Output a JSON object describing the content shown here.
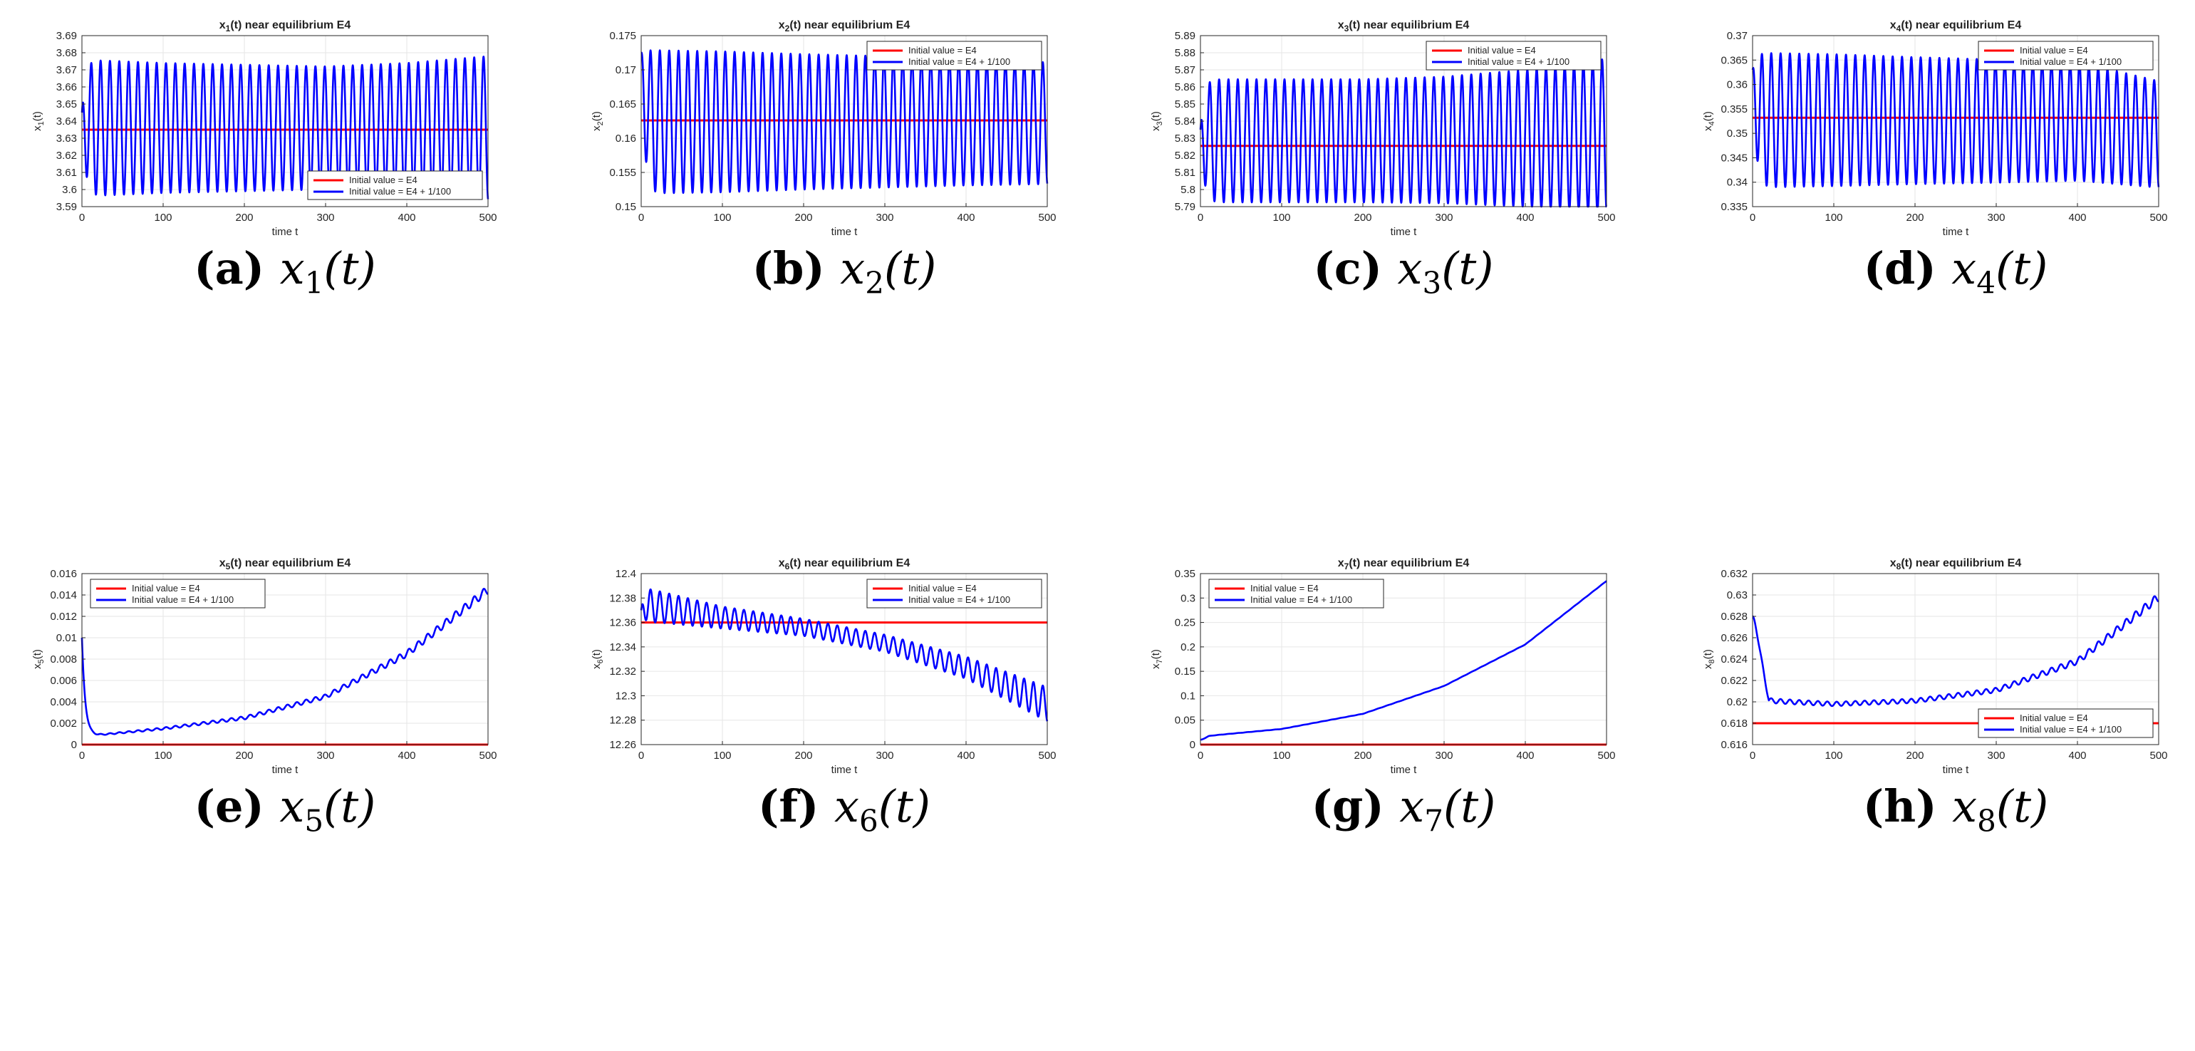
{
  "figure": {
    "legend_labels": {
      "base": "Initial value = E4",
      "perturbed": "Initial value = E4 + 1/100"
    }
  },
  "chart_data": [
    {
      "type": "line",
      "title": "x1(t) near equilibrium E4",
      "title_main": "x",
      "title_sub": "1",
      "title_rest": "(t) near equilibrium E4",
      "xlabel": "time t",
      "ylabel_main": "x",
      "ylabel_sub": "1",
      "ylabel_rest": "(t)",
      "xlim": [
        0,
        500
      ],
      "xticks": [
        0,
        100,
        200,
        300,
        400,
        500
      ],
      "xticklabels": [
        "0",
        "100",
        "200",
        "300",
        "400",
        "500"
      ],
      "ylim": [
        3.59,
        3.69
      ],
      "yticks": [
        3.59,
        3.6,
        3.61,
        3.62,
        3.63,
        3.64,
        3.65,
        3.66,
        3.67,
        3.68,
        3.69
      ],
      "yticklabels": [
        "3.59",
        "3.6",
        "3.61",
        "3.62",
        "3.63",
        "3.64",
        "3.65",
        "3.66",
        "3.67",
        "3.68",
        "3.69"
      ],
      "legend": "bottom-right",
      "series": [
        {
          "name": "Initial value = E4",
          "color": "#ff0000",
          "constant": 3.635
        },
        {
          "name": "Initial value = E4 + 1/100",
          "color": "#0000ff",
          "start": 3.645,
          "period": 11.5,
          "trend": [
            3.636,
            3.636,
            3.636,
            3.636,
            3.636,
            3.636
          ],
          "amplitude": [
            0.04,
            0.038,
            0.037,
            0.036,
            0.038,
            0.042
          ]
        }
      ],
      "caption_label": "(a)",
      "caption_var": "x",
      "caption_sub": "1",
      "caption_arg": "(t)"
    },
    {
      "type": "line",
      "title": "x2(t) near equilibrium E4",
      "title_main": "x",
      "title_sub": "2",
      "title_rest": "(t) near equilibrium E4",
      "xlabel": "time t",
      "ylabel_main": "x",
      "ylabel_sub": "2",
      "ylabel_rest": "(t)",
      "xlim": [
        0,
        500
      ],
      "xticks": [
        0,
        100,
        200,
        300,
        400,
        500
      ],
      "xticklabels": [
        "0",
        "100",
        "200",
        "300",
        "400",
        "500"
      ],
      "ylim": [
        0.15,
        0.175
      ],
      "yticks": [
        0.15,
        0.155,
        0.16,
        0.165,
        0.17,
        0.175
      ],
      "yticklabels": [
        "0.15",
        "0.155",
        "0.16",
        "0.165",
        "0.17",
        "0.175"
      ],
      "legend": "top-right",
      "series": [
        {
          "name": "Initial value = E4",
          "color": "#ff0000",
          "constant": 0.1626
        },
        {
          "name": "Initial value = E4 + 1/100",
          "color": "#0000ff",
          "start": 0.1725,
          "period": 11.5,
          "trend": [
            0.1624,
            0.1624,
            0.1624,
            0.1624,
            0.1624,
            0.1622
          ],
          "amplitude": [
            0.0105,
            0.0103,
            0.0099,
            0.0096,
            0.0093,
            0.0089
          ]
        }
      ],
      "caption_label": "(b)",
      "caption_var": "x",
      "caption_sub": "2",
      "caption_arg": "(t)"
    },
    {
      "type": "line",
      "title": "x3(t) near equilibrium E4",
      "title_main": "x",
      "title_sub": "3",
      "title_rest": "(t) near equilibrium E4",
      "xlabel": "time t",
      "ylabel_main": "x",
      "ylabel_sub": "3",
      "ylabel_rest": "(t)",
      "xlim": [
        0,
        500
      ],
      "xticks": [
        0,
        100,
        200,
        300,
        400,
        500
      ],
      "xticklabels": [
        "0",
        "100",
        "200",
        "300",
        "400",
        "500"
      ],
      "ylim": [
        5.79,
        5.89
      ],
      "yticks": [
        5.79,
        5.8,
        5.81,
        5.82,
        5.83,
        5.84,
        5.85,
        5.86,
        5.87,
        5.88,
        5.89
      ],
      "yticklabels": [
        "5.79",
        "5.8",
        "5.81",
        "5.82",
        "5.83",
        "5.84",
        "5.85",
        "5.86",
        "5.87",
        "5.88",
        "5.89"
      ],
      "legend": "top-right",
      "series": [
        {
          "name": "Initial value = E4",
          "color": "#ff0000",
          "constant": 5.8255
        },
        {
          "name": "Initial value = E4 + 1/100",
          "color": "#0000ff",
          "start": 5.835,
          "period": 11.5,
          "trend": [
            5.8285,
            5.8285,
            5.8285,
            5.829,
            5.83,
            5.8315
          ],
          "amplitude": [
            0.036,
            0.036,
            0.036,
            0.037,
            0.04,
            0.045
          ]
        }
      ],
      "caption_label": "(c)",
      "caption_var": "x",
      "caption_sub": "3",
      "caption_arg": "(t)"
    },
    {
      "type": "line",
      "title": "x4(t) near equilibrium E4",
      "title_main": "x",
      "title_sub": "4",
      "title_rest": "(t) near equilibrium E4",
      "xlabel": "time t",
      "ylabel_main": "x",
      "ylabel_sub": "4",
      "ylabel_rest": "(t)",
      "xlim": [
        0,
        500
      ],
      "xticks": [
        0,
        100,
        200,
        300,
        400,
        500
      ],
      "xticklabels": [
        "0",
        "100",
        "200",
        "300",
        "400",
        "500"
      ],
      "ylim": [
        0.335,
        0.37
      ],
      "yticks": [
        0.335,
        0.34,
        0.345,
        0.35,
        0.355,
        0.36,
        0.365,
        0.37
      ],
      "yticklabels": [
        "0.335",
        "0.34",
        "0.345",
        "0.35",
        "0.355",
        "0.36",
        "0.365",
        "0.37"
      ],
      "legend": "top-right",
      "series": [
        {
          "name": "Initial value = E4",
          "color": "#ff0000",
          "constant": 0.3532
        },
        {
          "name": "Initial value = E4 + 1/100",
          "color": "#0000ff",
          "start": 0.363,
          "period": 11.5,
          "trend": [
            0.3527,
            0.3527,
            0.3526,
            0.3525,
            0.3525,
            0.3498
          ],
          "amplitude": [
            0.0138,
            0.0135,
            0.013,
            0.0126,
            0.0122,
            0.0109
          ]
        }
      ],
      "caption_label": "(d)",
      "caption_var": "x",
      "caption_sub": "4",
      "caption_arg": "(t)"
    },
    {
      "type": "line",
      "title": "x5(t) near equilibrium E4",
      "title_main": "x",
      "title_sub": "5",
      "title_rest": "(t) near equilibrium E4",
      "xlabel": "time t",
      "ylabel_main": "x",
      "ylabel_sub": "5",
      "ylabel_rest": "(t)",
      "xlim": [
        0,
        500
      ],
      "xticks": [
        0,
        100,
        200,
        300,
        400,
        500
      ],
      "xticklabels": [
        "0",
        "100",
        "200",
        "300",
        "400",
        "500"
      ],
      "ylim": [
        0,
        0.016
      ],
      "yticks": [
        0,
        0.002,
        0.004,
        0.006,
        0.008,
        0.01,
        0.012,
        0.014,
        0.016
      ],
      "yticklabels": [
        "0",
        "0.002",
        "0.004",
        "0.006",
        "0.008",
        "0.01",
        "0.012",
        "0.014",
        "0.016"
      ],
      "legend": "top-left",
      "series": [
        {
          "name": "Initial value = E4",
          "color": "#ff0000",
          "constant": 0
        },
        {
          "name": "Initial value = E4 + 1/100",
          "color": "#0000ff",
          "start": 0.01,
          "period": 11.5,
          "trend": [
            0.0009,
            0.0009,
            0.0015,
            0.0025,
            0.0045,
            0.0085,
            0.0145
          ],
          "trend_x": [
            0,
            20,
            100,
            200,
            300,
            400,
            500
          ],
          "amplitude": [
            5e-05,
            5e-05,
            0.0001,
            0.00015,
            0.0002,
            0.0003,
            0.0004
          ]
        }
      ],
      "caption_label": "(e)",
      "caption_var": "x",
      "caption_sub": "5",
      "caption_arg": "(t)"
    },
    {
      "type": "line",
      "title": "x6(t) near equilibrium E4",
      "title_main": "x",
      "title_sub": "6",
      "title_rest": "(t) near equilibrium E4",
      "xlabel": "time t",
      "ylabel_main": "x",
      "ylabel_sub": "6",
      "ylabel_rest": "(t)",
      "xlim": [
        0,
        500
      ],
      "xticks": [
        0,
        100,
        200,
        300,
        400,
        500
      ],
      "xticklabels": [
        "0",
        "100",
        "200",
        "300",
        "400",
        "500"
      ],
      "ylim": [
        12.26,
        12.4
      ],
      "yticks": [
        12.26,
        12.28,
        12.3,
        12.32,
        12.34,
        12.36,
        12.38,
        12.4
      ],
      "yticklabels": [
        "12.26",
        "12.28",
        "12.3",
        "12.32",
        "12.34",
        "12.36",
        "12.38",
        "12.4"
      ],
      "legend": "top-right",
      "series": [
        {
          "name": "Initial value = E4",
          "color": "#ff0000",
          "constant": 12.36
        },
        {
          "name": "Initial value = E4 + 1/100",
          "color": "#0000ff",
          "start": 12.37,
          "period": 11.5,
          "trend": [
            12.375,
            12.373,
            12.364,
            12.356,
            12.343,
            12.323,
            12.293
          ],
          "trend_x": [
            0,
            20,
            100,
            200,
            300,
            400,
            500
          ],
          "amplitude": [
            0.016,
            0.013,
            0.009,
            0.007,
            0.007,
            0.009,
            0.014
          ]
        }
      ],
      "caption_label": "(f)",
      "caption_var": "x",
      "caption_sub": "6",
      "caption_arg": "(t)"
    },
    {
      "type": "line",
      "title": "x7(t) near equilibrium E4",
      "title_main": "x",
      "title_sub": "7",
      "title_rest": "(t) near equilibrium E4",
      "xlabel": "time t",
      "ylabel_main": "x",
      "ylabel_sub": "7",
      "ylabel_rest": "(t)",
      "xlim": [
        0,
        500
      ],
      "xticks": [
        0,
        100,
        200,
        300,
        400,
        500
      ],
      "xticklabels": [
        "0",
        "100",
        "200",
        "300",
        "400",
        "500"
      ],
      "ylim": [
        0,
        0.35
      ],
      "yticks": [
        0,
        0.05,
        0.1,
        0.15,
        0.2,
        0.25,
        0.3,
        0.35
      ],
      "yticklabels": [
        "0",
        "0.05",
        "0.1",
        "0.15",
        "0.2",
        "0.25",
        "0.3",
        "0.35"
      ],
      "legend": "top-left",
      "series": [
        {
          "name": "Initial value = E4",
          "color": "#ff0000",
          "constant": 0
        },
        {
          "name": "Initial value = E4 + 1/100",
          "color": "#0000ff",
          "start": 0.01,
          "period": 11.5,
          "trend": [
            0.01,
            0.018,
            0.032,
            0.063,
            0.12,
            0.205,
            0.335
          ],
          "trend_x": [
            0,
            10,
            100,
            200,
            300,
            400,
            500
          ],
          "amplitude": [
            0.0002,
            0.0002,
            0.0002,
            0.0002,
            0.0002,
            0.0002,
            0.0002
          ]
        }
      ],
      "caption_label": "(g)",
      "caption_var": "x",
      "caption_sub": "7",
      "caption_arg": "(t)"
    },
    {
      "type": "line",
      "title": "x8(t) near equilibrium E4",
      "title_main": "x",
      "title_sub": "8",
      "title_rest": "(t) near equilibrium E4",
      "xlabel": "time t",
      "ylabel_main": "x",
      "ylabel_sub": "8",
      "ylabel_rest": "(t)",
      "xlim": [
        0,
        500
      ],
      "xticks": [
        0,
        100,
        200,
        300,
        400,
        500
      ],
      "xticklabels": [
        "0",
        "100",
        "200",
        "300",
        "400",
        "500"
      ],
      "ylim": [
        0.616,
        0.632
      ],
      "yticks": [
        0.616,
        0.618,
        0.62,
        0.622,
        0.624,
        0.626,
        0.628,
        0.63,
        0.632
      ],
      "yticklabels": [
        "0.616",
        "0.618",
        "0.62",
        "0.622",
        "0.624",
        "0.626",
        "0.628",
        "0.63",
        "0.632"
      ],
      "legend": "bottom-right",
      "series": [
        {
          "name": "Initial value = E4",
          "color": "#ff0000",
          "constant": 0.618
        },
        {
          "name": "Initial value = E4 + 1/100",
          "color": "#0000ff",
          "start": 0.628,
          "period": 11.5,
          "trend": [
            0.628,
            0.6201,
            0.6198,
            0.6201,
            0.6211,
            0.6238,
            0.6298
          ],
          "trend_x": [
            0,
            20,
            100,
            200,
            300,
            400,
            500
          ],
          "amplitude": [
            0.0001,
            0.00022,
            0.0002,
            0.0002,
            0.00022,
            0.00028,
            0.0004
          ]
        }
      ],
      "caption_label": "(h)",
      "caption_var": "x",
      "caption_sub": "8",
      "caption_arg": "(t)"
    }
  ]
}
